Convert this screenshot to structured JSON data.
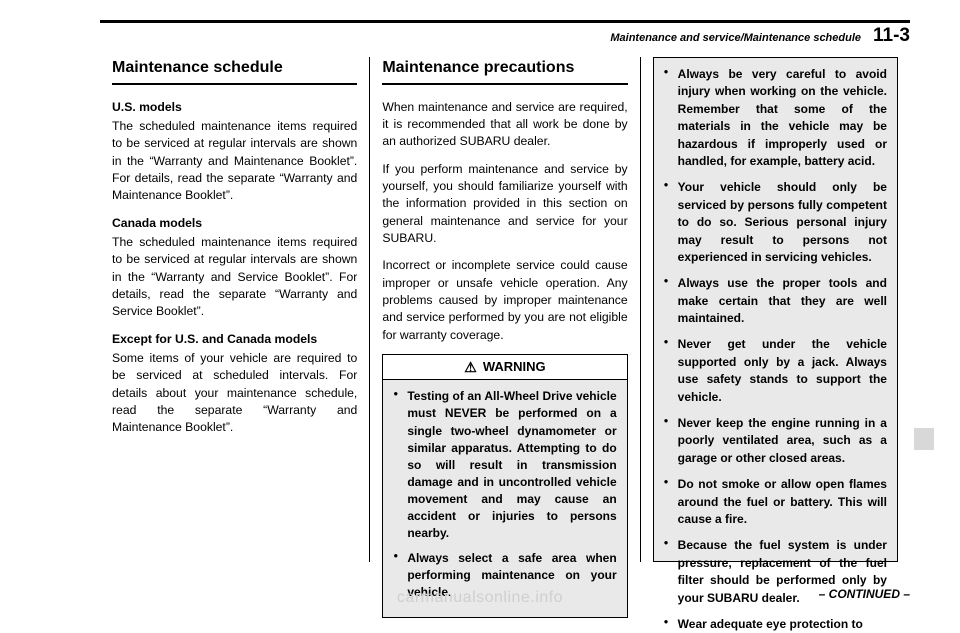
{
  "header": {
    "breadcrumb": "Maintenance and service/Maintenance schedule",
    "page_number": "11-3"
  },
  "column1": {
    "title": "Maintenance schedule",
    "sub1": "U.S. models",
    "p1": "The scheduled maintenance items required to be serviced at regular intervals are shown in the “Warranty and Maintenance Booklet”. For details, read the separate “Warranty and Maintenance Booklet”.",
    "sub2": "Canada models",
    "p2": "The scheduled maintenance items required to be serviced at regular intervals are shown in the “Warranty and Service Booklet”. For details, read the separate “Warranty and Service Booklet”.",
    "sub3": "Except for U.S. and Canada models",
    "p3": "Some items of your vehicle are required to be serviced at scheduled intervals. For details about your maintenance schedule, read the separate “Warranty and Maintenance Booklet”."
  },
  "column2": {
    "title": "Maintenance precautions",
    "p1": "When maintenance and service are required, it is recommended that all work be done by an authorized SUBARU dealer.",
    "p2": "If you perform maintenance and service by yourself, you should familiarize yourself with the information provided in this section on general maintenance and service for your SUBARU.",
    "p3": "Incorrect or incomplete service could cause improper or unsafe vehicle operation. Any problems caused by improper maintenance and service performed by you are not eligible for warranty coverage.",
    "warning_label": "WARNING",
    "warning_items": [
      "Testing of an All-Wheel Drive vehicle must NEVER be performed on a single two-wheel dynamometer or similar apparatus. Attempting to do so will result in transmission damage and in uncontrolled vehicle movement and may cause an accident or injuries to persons nearby.",
      "Always select a safe area when performing maintenance on your vehicle."
    ]
  },
  "column3": {
    "items": [
      "Always be very careful to avoid injury when working on the vehicle. Remember that some of the materials in the vehicle may be hazardous if improperly used or handled, for example, battery acid.",
      "Your vehicle should only be serviced by persons fully competent to do so. Serious personal injury may result to persons not experienced in servicing vehicles.",
      "Always use the proper tools and make certain that they are well maintained.",
      "Never get under the vehicle supported only by a jack. Always use safety stands to support the vehicle.",
      "Never keep the engine running in a poorly ventilated area, such as a garage or other closed areas.",
      "Do not smoke or allow open flames around the fuel or battery. This will cause a fire.",
      "Because the fuel system is under pressure, replacement of the fuel filter should be performed only by your SUBARU dealer.",
      "Wear adequate eye protection to"
    ]
  },
  "footer": {
    "continued": "– CONTINUED –",
    "watermark": "carmanualsonline.info"
  }
}
